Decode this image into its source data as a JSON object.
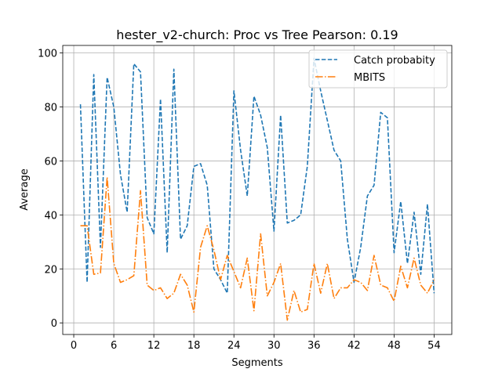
{
  "chart_data": {
    "type": "line",
    "title": "hester_v2-church: Proc vs Tree Pearson: 0.19",
    "xlabel": "Segments",
    "ylabel": "Average",
    "xlim": [
      -1.65,
      56.65
    ],
    "ylim": [
      -4.3,
      102.8
    ],
    "xticks": [
      0,
      6,
      12,
      18,
      24,
      30,
      36,
      42,
      48,
      54
    ],
    "yticks": [
      0,
      20,
      40,
      60,
      80,
      100
    ],
    "grid": true,
    "legend_position": "top-right",
    "x": [
      1,
      2,
      3,
      4,
      5,
      6,
      7,
      8,
      9,
      10,
      11,
      12,
      13,
      14,
      15,
      16,
      17,
      18,
      19,
      20,
      21,
      22,
      23,
      24,
      25,
      26,
      27,
      28,
      29,
      30,
      31,
      32,
      33,
      34,
      35,
      36,
      37,
      38,
      39,
      40,
      41,
      42,
      43,
      44,
      45,
      46,
      47,
      48,
      49,
      50,
      51,
      52,
      53,
      54
    ],
    "series": [
      {
        "name": "Catch probabity",
        "color": "#1f77b4",
        "style": "dashed",
        "values": [
          81,
          15,
          92,
          28,
          91,
          80,
          55,
          41,
          96,
          93,
          39,
          33,
          83,
          26,
          94,
          31,
          36,
          58,
          59,
          51,
          20,
          16,
          11,
          86,
          64,
          47,
          84,
          77,
          65,
          34,
          77,
          37,
          38,
          40,
          58,
          98,
          86,
          75,
          64,
          60,
          31,
          15,
          28,
          47,
          51,
          78,
          76,
          26,
          45,
          22,
          41,
          18,
          44,
          11
        ]
      },
      {
        "name": "MBITS",
        "color": "#ff7f0e",
        "style": "dashdot",
        "values": [
          36,
          36,
          18,
          18.5,
          54,
          22,
          15,
          16,
          17.5,
          49,
          14,
          12,
          13,
          9,
          11,
          18,
          14,
          4,
          28,
          36,
          27,
          16,
          25,
          19,
          13,
          24,
          4.5,
          33,
          10,
          15,
          22,
          1,
          12,
          4,
          5,
          22,
          11,
          22,
          9,
          13,
          13,
          16,
          15,
          12,
          25,
          14,
          13,
          8,
          21,
          13,
          24,
          14,
          11,
          16
        ]
      }
    ]
  }
}
